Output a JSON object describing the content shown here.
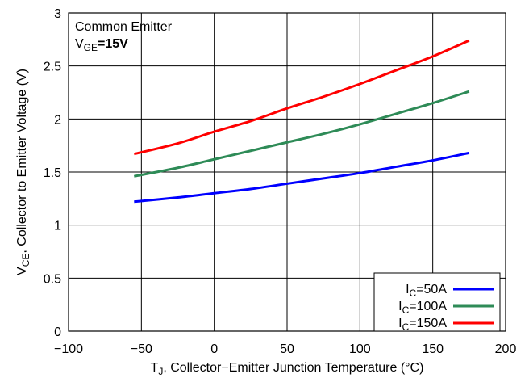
{
  "chart_data": {
    "type": "line",
    "xlabel": {
      "main": "T",
      "sub": "J",
      "rest": ", Collector−Emitter Junction Temperature (°C)"
    },
    "ylabel": {
      "main": "V",
      "sub": "CE",
      "rest": ", Collector to Emitter Voltage (V)"
    },
    "xlim": [
      -100,
      200
    ],
    "ylim": [
      0,
      3
    ],
    "xticks": [
      -100,
      -50,
      0,
      50,
      100,
      150,
      200
    ],
    "yticks": [
      0,
      0.5,
      1,
      1.5,
      2,
      2.5,
      3
    ],
    "xtick_labels": [
      "−100",
      "−50",
      "0",
      "50",
      "100",
      "150",
      "200"
    ],
    "ytick_labels": [
      "0",
      "0.5",
      "1",
      "1.5",
      "2",
      "2.5",
      "3"
    ],
    "grid": true,
    "legend_position": "bottom-right",
    "annotation": {
      "line1": "Common Emitter",
      "line2_main": "V",
      "line2_sub": "GE",
      "line2_rest": "=15V"
    },
    "series": [
      {
        "name": "IC=50A",
        "label_main": "I",
        "label_sub": "C",
        "label_rest": "=50A",
        "color": "#0000ff",
        "x": [
          -55,
          -25,
          0,
          25,
          50,
          75,
          100,
          125,
          150,
          175
        ],
        "y": [
          1.22,
          1.26,
          1.3,
          1.34,
          1.39,
          1.44,
          1.49,
          1.55,
          1.61,
          1.68
        ]
      },
      {
        "name": "IC=100A",
        "label_main": "I",
        "label_sub": "C",
        "label_rest": "=100A",
        "color": "#2e8b57",
        "x": [
          -55,
          -25,
          0,
          25,
          50,
          75,
          100,
          125,
          150,
          175
        ],
        "y": [
          1.46,
          1.54,
          1.62,
          1.7,
          1.78,
          1.86,
          1.95,
          2.05,
          2.15,
          2.26
        ]
      },
      {
        "name": "IC=150A",
        "label_main": "I",
        "label_sub": "C",
        "label_rest": "=150A",
        "color": "#ff0000",
        "x": [
          -55,
          -25,
          0,
          25,
          50,
          75,
          100,
          125,
          150,
          175
        ],
        "y": [
          1.67,
          1.77,
          1.88,
          1.98,
          2.1,
          2.21,
          2.33,
          2.46,
          2.59,
          2.74
        ]
      }
    ]
  }
}
